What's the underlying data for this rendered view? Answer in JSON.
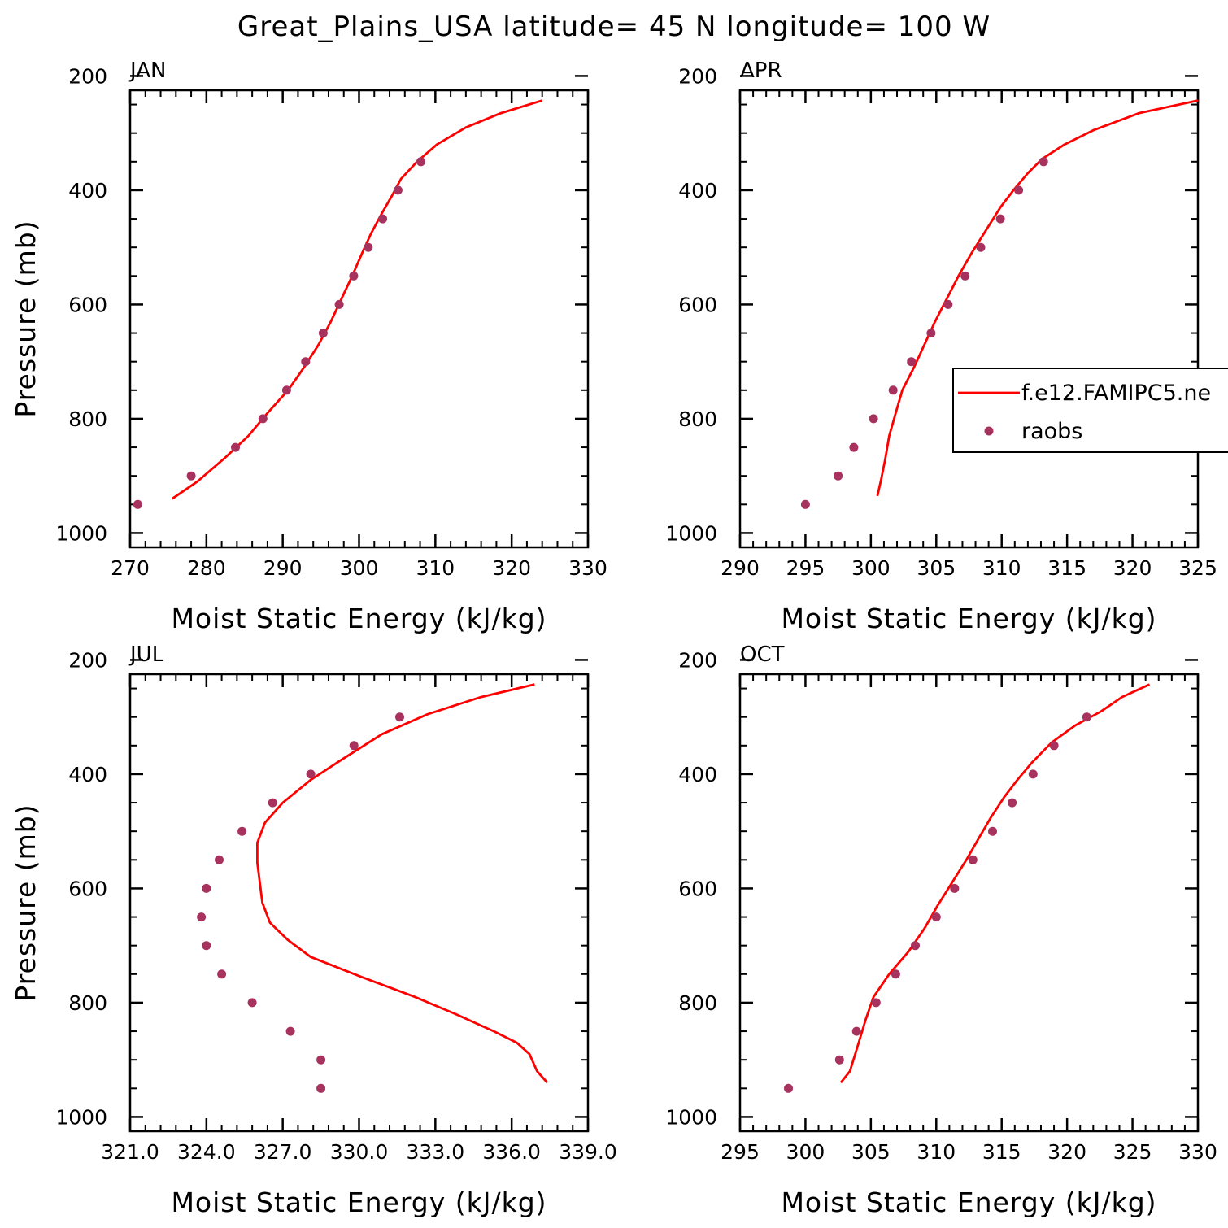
{
  "figure": {
    "title": "Great_Plains_USA  latitude= 45 N longitude= 100 W"
  },
  "colors": {
    "model_line": "#ff0000",
    "obs_marker": "#a8325e",
    "frame": "#000000"
  },
  "legend": {
    "panel": "APR",
    "placement": "right",
    "entries": [
      {
        "label": "f.e12.FAMIPC5.ne",
        "style": "line"
      },
      {
        "label": "raobs",
        "style": "marker"
      }
    ]
  },
  "chart_data": [
    {
      "type": "line",
      "title": "JAN",
      "xlabel": "Moist Static Energy (kJ/kg)",
      "ylabel": "Pressure (mb)",
      "xlim": [
        270,
        330
      ],
      "ylim": [
        1000,
        200
      ],
      "y_log": true,
      "xticks": [
        270,
        280,
        290,
        300,
        310,
        320,
        330
      ],
      "xtick_labels": [
        "270",
        "280",
        "290",
        "300",
        "310",
        "320",
        "330"
      ],
      "yticks": [
        200,
        400,
        600,
        800,
        1000
      ],
      "ytick_labels": [
        "200",
        "400",
        "600",
        "800",
        "1000"
      ],
      "series": [
        {
          "name": "f.e12.FAMIPC5.ne",
          "style": "line",
          "points": [
            [
              275.5,
              940
            ],
            [
              278.8,
              910
            ],
            [
              282.3,
              870
            ],
            [
              285.5,
              830
            ],
            [
              288.0,
              790
            ],
            [
              290.7,
              750
            ],
            [
              292.8,
              710
            ],
            [
              294.7,
              670
            ],
            [
              296.3,
              630
            ],
            [
              297.7,
              590
            ],
            [
              299.1,
              550
            ],
            [
              300.4,
              510
            ],
            [
              301.6,
              475
            ],
            [
              303.0,
              440
            ],
            [
              304.3,
              410
            ],
            [
              305.5,
              380
            ],
            [
              307.6,
              350
            ],
            [
              310.2,
              320
            ],
            [
              314.0,
              290
            ],
            [
              318.6,
              265
            ],
            [
              324.0,
              243
            ]
          ]
        },
        {
          "name": "raobs",
          "style": "marker",
          "points": [
            [
              271.0,
              950
            ],
            [
              278.0,
              900
            ],
            [
              283.8,
              850
            ],
            [
              287.4,
              800
            ],
            [
              290.5,
              750
            ],
            [
              293.0,
              700
            ],
            [
              295.3,
              650
            ],
            [
              297.4,
              600
            ],
            [
              299.3,
              550
            ],
            [
              301.2,
              500
            ],
            [
              303.1,
              450
            ],
            [
              305.1,
              400
            ],
            [
              308.1,
              350
            ]
          ]
        }
      ]
    },
    {
      "type": "line",
      "title": "APR",
      "xlabel": "Moist Static Energy (kJ/kg)",
      "ylabel": "",
      "xlim": [
        290,
        325
      ],
      "ylim": [
        1000,
        200
      ],
      "y_log": true,
      "xticks": [
        290,
        295,
        300,
        305,
        310,
        315,
        320,
        325
      ],
      "xtick_labels": [
        "290",
        "295",
        "300",
        "305",
        "310",
        "315",
        "320",
        "325"
      ],
      "yticks": [
        200,
        400,
        600,
        800,
        1000
      ],
      "ytick_labels": [
        "200",
        "400",
        "600",
        "800",
        "1000"
      ],
      "series": [
        {
          "name": "f.e12.FAMIPC5.ne",
          "style": "line",
          "points": [
            [
              300.5,
              935
            ],
            [
              300.8,
              905
            ],
            [
              301.1,
              870
            ],
            [
              301.4,
              830
            ],
            [
              301.9,
              790
            ],
            [
              302.4,
              750
            ],
            [
              303.3,
              710
            ],
            [
              304.1,
              670
            ],
            [
              304.9,
              630
            ],
            [
              305.8,
              590
            ],
            [
              306.7,
              550
            ],
            [
              307.7,
              510
            ],
            [
              308.8,
              470
            ],
            [
              309.9,
              430
            ],
            [
              310.9,
              400
            ],
            [
              312.0,
              370
            ],
            [
              313.1,
              345
            ],
            [
              314.8,
              320
            ],
            [
              317.0,
              295
            ],
            [
              320.5,
              265
            ],
            [
              325.0,
              243
            ]
          ]
        },
        {
          "name": "raobs",
          "style": "marker",
          "points": [
            [
              295.0,
              950
            ],
            [
              297.5,
              900
            ],
            [
              298.7,
              850
            ],
            [
              300.2,
              800
            ],
            [
              301.7,
              750
            ],
            [
              303.1,
              700
            ],
            [
              304.6,
              650
            ],
            [
              305.9,
              600
            ],
            [
              307.2,
              550
            ],
            [
              308.4,
              500
            ],
            [
              309.9,
              450
            ],
            [
              311.3,
              400
            ],
            [
              313.2,
              350
            ]
          ]
        }
      ]
    },
    {
      "type": "line",
      "title": "JUL",
      "xlabel": "Moist Static Energy (kJ/kg)",
      "ylabel": "Pressure (mb)",
      "xlim": [
        321.0,
        339.0
      ],
      "ylim": [
        1000,
        200
      ],
      "y_log": true,
      "xticks": [
        321.0,
        324.0,
        327.0,
        330.0,
        333.0,
        336.0,
        339.0
      ],
      "xtick_labels": [
        "321.0",
        "324.0",
        "327.0",
        "330.0",
        "333.0",
        "336.0",
        "339.0"
      ],
      "yticks": [
        200,
        400,
        600,
        800,
        1000
      ],
      "ytick_labels": [
        "200",
        "400",
        "600",
        "800",
        "1000"
      ],
      "series": [
        {
          "name": "f.e12.FAMIPC5.ne",
          "style": "line",
          "points": [
            [
              337.4,
              940
            ],
            [
              337.0,
              920
            ],
            [
              336.7,
              890
            ],
            [
              336.2,
              870
            ],
            [
              335.3,
              850
            ],
            [
              333.8,
              820
            ],
            [
              332.2,
              790
            ],
            [
              330.1,
              755
            ],
            [
              328.1,
              720
            ],
            [
              327.2,
              690
            ],
            [
              326.5,
              660
            ],
            [
              326.2,
              625
            ],
            [
              326.1,
              590
            ],
            [
              326.0,
              555
            ],
            [
              326.0,
              520
            ],
            [
              326.3,
              485
            ],
            [
              327.0,
              450
            ],
            [
              328.1,
              410
            ],
            [
              329.3,
              375
            ],
            [
              330.9,
              330
            ],
            [
              332.7,
              295
            ],
            [
              334.8,
              265
            ],
            [
              336.9,
              243
            ]
          ]
        },
        {
          "name": "raobs",
          "style": "marker",
          "points": [
            [
              328.5,
              950
            ],
            [
              328.5,
              900
            ],
            [
              327.3,
              850
            ],
            [
              325.8,
              800
            ],
            [
              324.6,
              750
            ],
            [
              324.0,
              700
            ],
            [
              323.8,
              650
            ],
            [
              324.0,
              600
            ],
            [
              324.5,
              550
            ],
            [
              325.4,
              500
            ],
            [
              326.6,
              450
            ],
            [
              328.1,
              400
            ],
            [
              329.8,
              350
            ],
            [
              331.6,
              300
            ]
          ]
        }
      ]
    },
    {
      "type": "line",
      "title": "OCT",
      "xlabel": "Moist Static Energy (kJ/kg)",
      "ylabel": "",
      "xlim": [
        295,
        330
      ],
      "ylim": [
        1000,
        200
      ],
      "y_log": true,
      "xticks": [
        295,
        300,
        305,
        310,
        315,
        320,
        325,
        330
      ],
      "xtick_labels": [
        "295",
        "300",
        "305",
        "310",
        "315",
        "320",
        "325",
        "330"
      ],
      "yticks": [
        200,
        400,
        600,
        800,
        1000
      ],
      "ytick_labels": [
        "200",
        "400",
        "600",
        "800",
        "1000"
      ],
      "series": [
        {
          "name": "f.e12.FAMIPC5.ne",
          "style": "line",
          "points": [
            [
              302.7,
              940
            ],
            [
              303.4,
              920
            ],
            [
              303.8,
              890
            ],
            [
              304.2,
              860
            ],
            [
              304.6,
              830
            ],
            [
              305.2,
              790
            ],
            [
              306.4,
              750
            ],
            [
              307.9,
              710
            ],
            [
              309.1,
              670
            ],
            [
              310.1,
              630
            ],
            [
              311.2,
              590
            ],
            [
              312.3,
              550
            ],
            [
              313.3,
              510
            ],
            [
              314.2,
              475
            ],
            [
              315.2,
              440
            ],
            [
              316.2,
              410
            ],
            [
              317.3,
              380
            ],
            [
              318.8,
              345
            ],
            [
              320.6,
              315
            ],
            [
              322.6,
              290
            ],
            [
              324.2,
              265
            ],
            [
              326.3,
              243
            ]
          ]
        },
        {
          "name": "raobs",
          "style": "marker",
          "points": [
            [
              298.7,
              950
            ],
            [
              302.6,
              900
            ],
            [
              303.9,
              850
            ],
            [
              305.4,
              800
            ],
            [
              306.9,
              750
            ],
            [
              308.4,
              700
            ],
            [
              310.0,
              650
            ],
            [
              311.4,
              600
            ],
            [
              312.8,
              550
            ],
            [
              314.3,
              500
            ],
            [
              315.8,
              450
            ],
            [
              317.4,
              400
            ],
            [
              319.0,
              350
            ],
            [
              321.5,
              300
            ]
          ]
        }
      ]
    }
  ]
}
